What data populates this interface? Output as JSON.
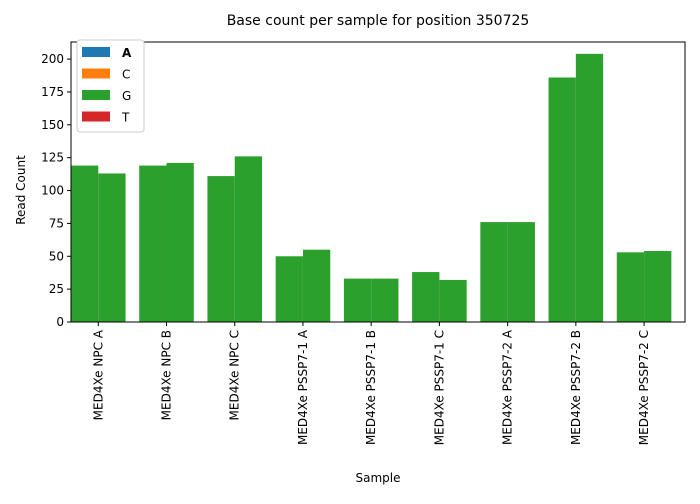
{
  "chart_data": {
    "type": "bar",
    "title": "Base count per sample for position 350725",
    "xlabel": "Sample",
    "ylabel": "Read Count",
    "ylim": [
      0,
      213
    ],
    "yticks": [
      0,
      25,
      50,
      75,
      100,
      125,
      150,
      175,
      200
    ],
    "grid": false,
    "legend_position": "top-left",
    "categories": [
      "MED4Xe NPC A",
      "MED4Xe NPC B",
      "MED4Xe NPC C",
      "MED4Xe PSSP7-1 A",
      "MED4Xe PSSP7-1 B",
      "MED4Xe PSSP7-1 C",
      "MED4Xe PSSP7-2 A",
      "MED4Xe PSSP7-2 B",
      "MED4Xe PSSP7-2 C"
    ],
    "bars_per_category": 2,
    "stacked": true,
    "series": [
      {
        "name": "A",
        "color": "#1f77b4",
        "values": [
          [
            0,
            0
          ],
          [
            0,
            0
          ],
          [
            0,
            0
          ],
          [
            0,
            0
          ],
          [
            0,
            0
          ],
          [
            0,
            0
          ],
          [
            0,
            0
          ],
          [
            0,
            0
          ],
          [
            0,
            0
          ]
        ]
      },
      {
        "name": "C",
        "color": "#ff7f0e",
        "values": [
          [
            0,
            0
          ],
          [
            0,
            0
          ],
          [
            0,
            0
          ],
          [
            0,
            0
          ],
          [
            0,
            0
          ],
          [
            0,
            0
          ],
          [
            0,
            0
          ],
          [
            0,
            0
          ],
          [
            0,
            0
          ]
        ]
      },
      {
        "name": "G",
        "color": "#2ca02c",
        "values": [
          [
            119,
            113
          ],
          [
            119,
            121
          ],
          [
            111,
            126
          ],
          [
            50,
            55
          ],
          [
            33,
            33
          ],
          [
            38,
            32
          ],
          [
            76,
            76
          ],
          [
            186,
            204
          ],
          [
            53,
            54
          ]
        ]
      },
      {
        "name": "T",
        "color": "#d62728",
        "values": [
          [
            0,
            0
          ],
          [
            0,
            0
          ],
          [
            0,
            0
          ],
          [
            0,
            0
          ],
          [
            0,
            0
          ],
          [
            0,
            0
          ],
          [
            0,
            0
          ],
          [
            0,
            0
          ],
          [
            0,
            0
          ]
        ]
      }
    ],
    "legend_bold": [
      "A"
    ]
  }
}
